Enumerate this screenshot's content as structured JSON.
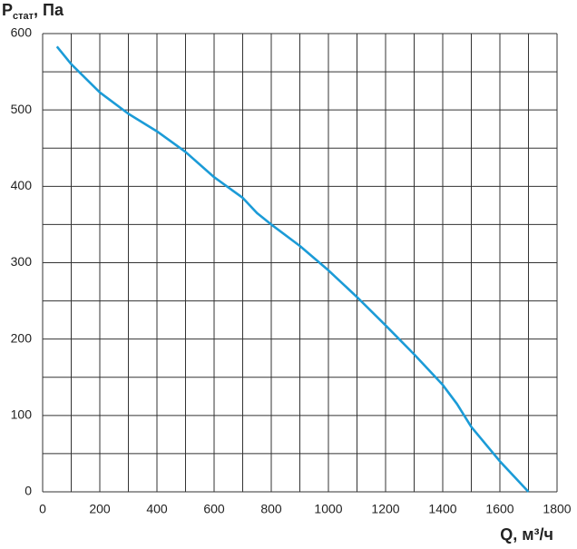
{
  "chart_data": {
    "type": "line",
    "ylabel": {
      "symbol": "P",
      "subscript": "стат",
      "unit": ", Па"
    },
    "xlabel": "Q, м³/ч",
    "x": [
      50,
      100,
      200,
      300,
      400,
      500,
      600,
      700,
      750,
      800,
      900,
      1000,
      1100,
      1200,
      1300,
      1400,
      1450,
      1500,
      1600,
      1700
    ],
    "series": [
      {
        "color": "#1b9bd7",
        "values": [
          583,
          560,
          523,
          495,
          472,
          445,
          412,
          385,
          365,
          350,
          322,
          290,
          255,
          218,
          180,
          140,
          115,
          85,
          40,
          0
        ]
      }
    ],
    "xlim": [
      0,
      1800
    ],
    "ylim": [
      0,
      600
    ],
    "xticks": [
      0,
      200,
      400,
      600,
      800,
      1000,
      1200,
      1400,
      1600,
      1800
    ],
    "yticks": [
      0,
      100,
      200,
      300,
      400,
      500,
      600
    ],
    "xgrid": [
      0,
      100,
      200,
      300,
      400,
      500,
      600,
      700,
      800,
      900,
      1000,
      1100,
      1200,
      1300,
      1400,
      1500,
      1600,
      1700,
      1800
    ],
    "ygrid": [
      0,
      50,
      100,
      150,
      200,
      250,
      300,
      350,
      400,
      450,
      500,
      550,
      600
    ],
    "grid": true
  }
}
